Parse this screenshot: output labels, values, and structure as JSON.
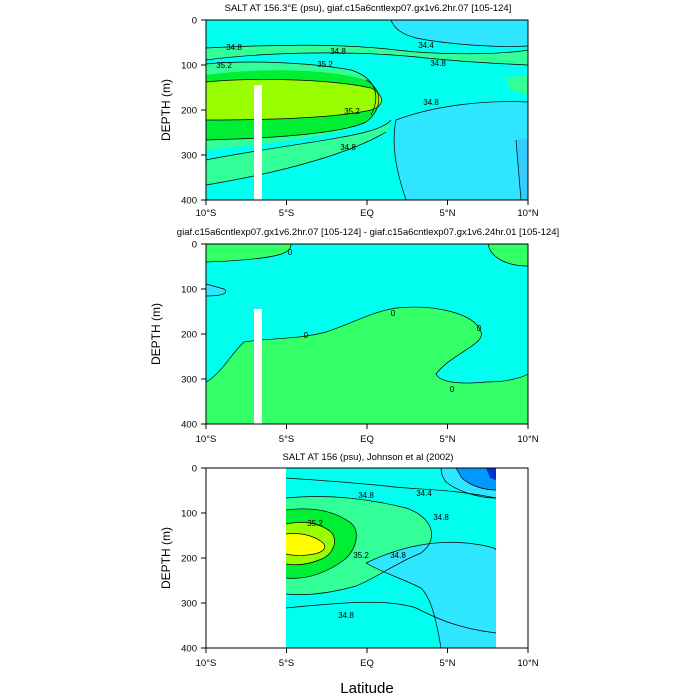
{
  "chart_data": [
    {
      "type": "contour",
      "title": "SALT AT 156.3°E (psu), giaf.c15a6cntlexp07.gx1v6.2hr.07 [105-124]",
      "ylabel": "DEPTH (m)",
      "xlim": [
        -10,
        10
      ],
      "ylim": [
        0,
        400
      ],
      "x_tick_labels": [
        "10°S",
        "5°S",
        "EQ",
        "5°N",
        "10°N"
      ],
      "y_tick_labels": [
        "0",
        "100",
        "200",
        "300",
        "400"
      ],
      "contour_labels": [
        "34.8",
        "34.8",
        "34.4",
        "35.2",
        "35.2",
        "34.8",
        "35.2",
        "34.8",
        "34.8"
      ],
      "colors": {
        "fresh": "#2ee6ff",
        "mid": "#00ffee",
        "salty1": "#33ff99",
        "salty2": "#00ee33",
        "salty3": "#99ff00",
        "mask": "#ffffff"
      }
    },
    {
      "type": "contour",
      "title": "giaf.c15a6cntlexp07.gx1v6.2hr.07 [105-124] - giaf.c15a6cntlexp07.gx1v6.24hr.01 [105-124]",
      "ylabel": "DEPTH (m)",
      "xlim": [
        -10,
        10
      ],
      "ylim": [
        0,
        400
      ],
      "x_tick_labels": [
        "10°S",
        "5°S",
        "EQ",
        "5°N",
        "10°N"
      ],
      "y_tick_labels": [
        "0",
        "100",
        "200",
        "300",
        "400"
      ],
      "contour_labels": [
        "0",
        "0",
        "0",
        "0",
        "0"
      ],
      "colors": {
        "neg": "#00ffee",
        "pos": "#33ff66"
      }
    },
    {
      "type": "contour",
      "title": "SALT AT 156 (psu), Johnson et al (2002)",
      "ylabel": "DEPTH (m)",
      "xlabel": "Latitude",
      "xlim": [
        -10,
        10
      ],
      "ylim": [
        0,
        400
      ],
      "x_tick_labels": [
        "10°S",
        "5°S",
        "EQ",
        "5°N",
        "10°N"
      ],
      "y_tick_labels": [
        "0",
        "100",
        "200",
        "300",
        "400"
      ],
      "contour_labels": [
        "34.8",
        "34.4",
        "35.2",
        "34.8",
        "35.2",
        "34.8",
        "34.8"
      ],
      "colors": {
        "fresh": "#2ee6ff",
        "fresher": "#0099ff",
        "freshest": "#0033cc",
        "mid": "#00ffee",
        "salty1": "#33ff99",
        "salty2": "#00ee33",
        "salty3": "#99ff00",
        "salty4": "#ffff00"
      }
    }
  ]
}
